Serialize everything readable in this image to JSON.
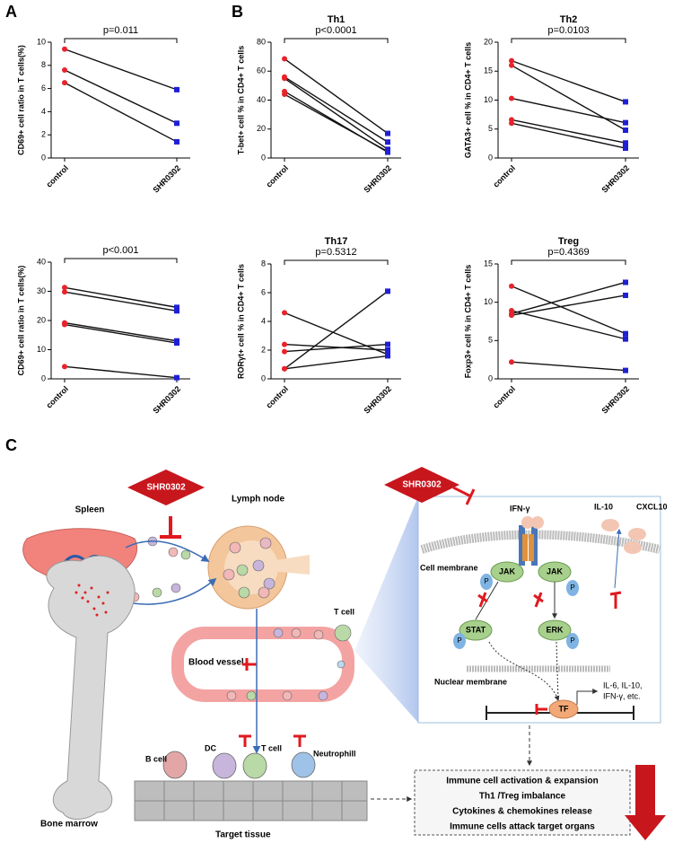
{
  "panel_labels": [
    "A",
    "B",
    "C"
  ],
  "chart_data": [
    {
      "type": "paired",
      "ylabel": "CD69+ cell ratio in T cells(%)",
      "categories": [
        "control",
        "SHR0302"
      ],
      "marker_colors": [
        "#e8232b",
        "#1f1fd6"
      ],
      "line_color": "#111111",
      "annotation": "p=0.011",
      "ylim": [
        0,
        10
      ],
      "yticks": [
        0,
        2,
        4,
        6,
        8,
        10
      ],
      "series": [
        {
          "values": [
            9.4,
            5.9
          ]
        },
        {
          "values": [
            7.6,
            3.0
          ]
        },
        {
          "values": [
            6.5,
            1.4
          ]
        }
      ]
    },
    {
      "type": "paired",
      "title": "Th1",
      "ylabel": "T-bet+ cell % in CD4+ T cells",
      "categories": [
        "control",
        "SHR0302"
      ],
      "marker_colors": [
        "#e8232b",
        "#1f1fd6"
      ],
      "line_color": "#111111",
      "annotation": "p<0.0001",
      "ylim": [
        0,
        80
      ],
      "yticks": [
        0,
        20,
        40,
        60,
        80
      ],
      "series": [
        {
          "values": [
            68.5,
            17
          ]
        },
        {
          "values": [
            56,
            11
          ]
        },
        {
          "values": [
            55,
            6
          ]
        },
        {
          "values": [
            46,
            4
          ]
        },
        {
          "values": [
            44,
            4.5
          ]
        }
      ]
    },
    {
      "type": "paired",
      "title": "Th2",
      "ylabel": "GATA3+ cell % in CD4+ T cells",
      "categories": [
        "control",
        "SHR0302"
      ],
      "marker_colors": [
        "#e8232b",
        "#1f1fd6"
      ],
      "line_color": "#111111",
      "annotation": "p=0.0103",
      "ylim": [
        0,
        20
      ],
      "yticks": [
        0,
        5,
        10,
        15,
        20
      ],
      "series": [
        {
          "values": [
            16.8,
            9.7
          ]
        },
        {
          "values": [
            16.0,
            4.8
          ]
        },
        {
          "values": [
            10.3,
            6.1
          ]
        },
        {
          "values": [
            6.6,
            2.6
          ]
        },
        {
          "values": [
            6.0,
            1.7
          ]
        }
      ]
    },
    {
      "type": "paired",
      "ylabel": "CD69+ cell ratio in T cells(%)",
      "categories": [
        "control",
        "SHR0302"
      ],
      "marker_colors": [
        "#e8232b",
        "#1f1fd6"
      ],
      "line_color": "#111111",
      "annotation": "p<0.001",
      "ylim": [
        0,
        40
      ],
      "yticks": [
        0,
        10,
        20,
        30,
        40
      ],
      "series": [
        {
          "values": [
            31.3,
            24.5
          ]
        },
        {
          "values": [
            29.8,
            23.3
          ]
        },
        {
          "values": [
            19.2,
            13.0
          ]
        },
        {
          "values": [
            18.6,
            12.3
          ]
        },
        {
          "values": [
            4.2,
            0.4
          ]
        }
      ]
    },
    {
      "type": "paired",
      "title": "Th17",
      "ylabel": "RORγt+ cell % in CD4+ T cells",
      "categories": [
        "control",
        "SHR0302"
      ],
      "marker_colors": [
        "#e8232b",
        "#1f1fd6"
      ],
      "line_color": "#111111",
      "annotation": "p=0.5312",
      "ylim": [
        0,
        8
      ],
      "yticks": [
        0,
        2,
        4,
        6,
        8
      ],
      "series": [
        {
          "values": [
            4.6,
            1.7
          ]
        },
        {
          "values": [
            2.4,
            2.0
          ]
        },
        {
          "values": [
            1.9,
            2.4
          ]
        },
        {
          "values": [
            0.7,
            6.1
          ]
        },
        {
          "values": [
            0.7,
            1.6
          ]
        }
      ]
    },
    {
      "type": "paired",
      "title": "Treg",
      "ylabel": "Foxp3+ cell % in CD4+ T cells",
      "categories": [
        "control",
        "SHR0302"
      ],
      "marker_colors": [
        "#e8232b",
        "#1f1fd6"
      ],
      "line_color": "#111111",
      "annotation": "p=0.4369",
      "ylim": [
        0,
        15
      ],
      "yticks": [
        0,
        5,
        10,
        15
      ],
      "series": [
        {
          "values": [
            12.1,
            5.9
          ]
        },
        {
          "values": [
            8.9,
            5.2
          ]
        },
        {
          "values": [
            8.5,
            12.6
          ]
        },
        {
          "values": [
            8.3,
            10.9
          ]
        },
        {
          "values": [
            2.2,
            1.1
          ]
        }
      ]
    }
  ],
  "diagram": {
    "drug": [
      "SHR0302",
      "SHR0302"
    ],
    "organs": [
      "Spleen",
      "Lymph node",
      "Bone marrow",
      "Blood vessel",
      "Target tissue"
    ],
    "cells": [
      "T cell",
      "B cell",
      "DC",
      "T cell",
      "Neutrophill"
    ],
    "signaling": {
      "ligand": "IFN-γ",
      "secreted": [
        "IL-10",
        "CXCL10"
      ],
      "cell_membrane": "Cell membrane",
      "nuclear_membrane": "Nuclear membrane",
      "kinases": [
        "JAK",
        "JAK"
      ],
      "phospho": [
        "P",
        "P",
        "P",
        "P"
      ],
      "stat": "STAT",
      "erk": "ERK",
      "tf": "TF",
      "products": [
        "IL-6, IL-10,",
        "IFN-γ, etc."
      ]
    },
    "outcomes": [
      "Immune cell activation & expansion",
      "Th1 /Treg imbalance",
      "Cytokines & chemokines release",
      "Immune cells attack target organs"
    ]
  }
}
